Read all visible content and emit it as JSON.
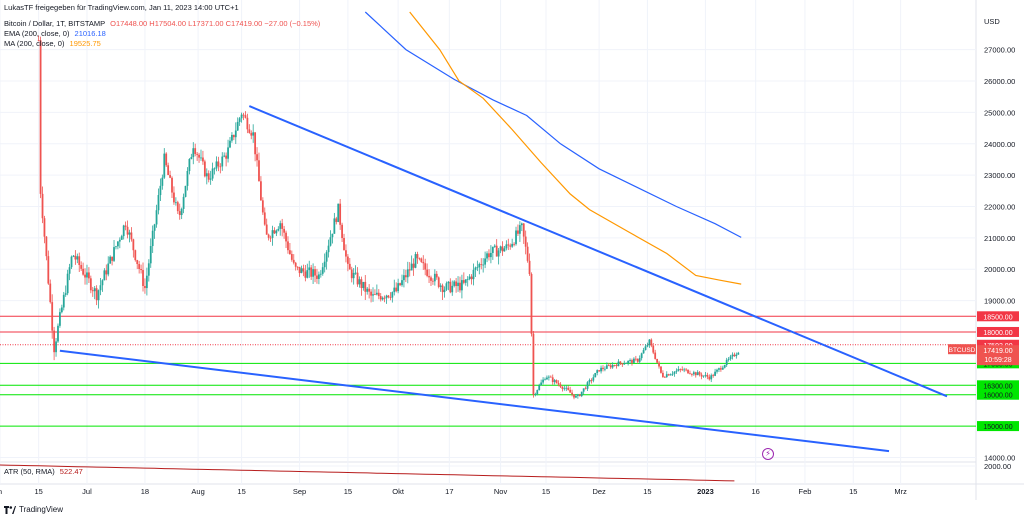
{
  "header": {
    "published": "LukasTF freigegeben für TradingView.com, Jan 11, 2023 14:00 UTC+1",
    "symbol": "Bitcoin / Dollar, 1T, BITSTAMP",
    "ohlc": "O17448.00 H17504.00 L17371.00 C17419.00 −27.00 (−0.15%)",
    "ema_label": "EMA (200, close, 0)",
    "ema_value": "21016.18",
    "ma_label": "MA (200, close, 0)",
    "ma_value": "19525.75",
    "atr_label": "ATR (50, RMA)",
    "atr_value": "522.47"
  },
  "footer": {
    "brand": "TradingView"
  },
  "colors": {
    "up": "#26a69a",
    "down": "#ef5350",
    "ema": "#2962ff",
    "ma": "#ff9800",
    "trend": "#2962ff",
    "resistance": "#f23645",
    "support": "#00e600",
    "atr": "#b71c1c"
  },
  "icons": [
    "tradingview-logo-icon",
    "lightning-event-icon"
  ],
  "chart_data": {
    "type": "candlestick",
    "title": "Bitcoin / Dollar, 1T, BITSTAMP",
    "ylabel": "USD",
    "currency_label": "USD",
    "ylim": [
      13600,
      28200
    ],
    "y_ticks": [
      "27000.00",
      "26000.00",
      "25000.00",
      "24000.00",
      "23000.00",
      "22000.00",
      "21000.00",
      "20000.00",
      "19000.00",
      "14000.00"
    ],
    "x_ticks": [
      "n",
      "15",
      "Jul",
      "18",
      "Aug",
      "15",
      "Sep",
      "15",
      "Okt",
      "17",
      "Nov",
      "15",
      "Dez",
      "15",
      "2023",
      "16",
      "Feb",
      "15",
      "Mrz"
    ],
    "x_tick_days": [
      0,
      40,
      90,
      150,
      205,
      250,
      310,
      360,
      412,
      465,
      518,
      565,
      620,
      670,
      730,
      782,
      833,
      883,
      932
    ],
    "x_range_days": [
      0,
      1010
    ],
    "last_candle_day": 765,
    "key_points": [
      {
        "day": 40,
        "close": 27300
      },
      {
        "day": 42,
        "close": 22500
      },
      {
        "day": 56,
        "close": 17500
      },
      {
        "day": 75,
        "close": 20500
      },
      {
        "day": 100,
        "close": 19200
      },
      {
        "day": 130,
        "close": 21500
      },
      {
        "day": 150,
        "close": 19400
      },
      {
        "day": 170,
        "close": 23500
      },
      {
        "day": 185,
        "close": 21600
      },
      {
        "day": 200,
        "close": 24000
      },
      {
        "day": 215,
        "close": 22900
      },
      {
        "day": 235,
        "close": 23700
      },
      {
        "day": 250,
        "close": 25000
      },
      {
        "day": 262,
        "close": 24300
      },
      {
        "day": 275,
        "close": 21000
      },
      {
        "day": 290,
        "close": 21500
      },
      {
        "day": 305,
        "close": 20000
      },
      {
        "day": 330,
        "close": 19800
      },
      {
        "day": 350,
        "close": 21900
      },
      {
        "day": 360,
        "close": 20000
      },
      {
        "day": 385,
        "close": 19100
      },
      {
        "day": 410,
        "close": 19300
      },
      {
        "day": 430,
        "close": 20300
      },
      {
        "day": 460,
        "close": 19400
      },
      {
        "day": 480,
        "close": 19500
      },
      {
        "day": 505,
        "close": 20500
      },
      {
        "day": 525,
        "close": 20700
      },
      {
        "day": 540,
        "close": 21300
      },
      {
        "day": 548,
        "close": 20000
      },
      {
        "day": 552,
        "close": 16000
      },
      {
        "day": 565,
        "close": 16600
      },
      {
        "day": 580,
        "close": 16300
      },
      {
        "day": 597,
        "close": 15900
      },
      {
        "day": 620,
        "close": 16800
      },
      {
        "day": 640,
        "close": 17000
      },
      {
        "day": 660,
        "close": 17100
      },
      {
        "day": 672,
        "close": 17700
      },
      {
        "day": 685,
        "close": 16600
      },
      {
        "day": 705,
        "close": 16800
      },
      {
        "day": 735,
        "close": 16550
      },
      {
        "day": 765,
        "close": 17419
      }
    ],
    "series": [
      {
        "name": "EMA (200, close, 0)",
        "points": [
          [
            378,
            28200
          ],
          [
            420,
            27000
          ],
          [
            470,
            26050
          ],
          [
            510,
            25400
          ],
          [
            545,
            24900
          ],
          [
            580,
            24000
          ],
          [
            620,
            23200
          ],
          [
            660,
            22600
          ],
          [
            700,
            22000
          ],
          [
            740,
            21450
          ],
          [
            767,
            21016
          ]
        ]
      },
      {
        "name": "MA (200, close, 0)",
        "points": [
          [
            424,
            28200
          ],
          [
            455,
            27000
          ],
          [
            475,
            26000
          ],
          [
            500,
            25450
          ],
          [
            530,
            24450
          ],
          [
            560,
            23400
          ],
          [
            590,
            22400
          ],
          [
            610,
            21900
          ],
          [
            650,
            21200
          ],
          [
            690,
            20500
          ],
          [
            720,
            19800
          ],
          [
            745,
            19650
          ],
          [
            767,
            19525
          ]
        ]
      }
    ],
    "trendlines": [
      {
        "from": [
          258,
          25200
        ],
        "to": [
          980,
          15950
        ]
      },
      {
        "from": [
          62,
          17400
        ],
        "to": [
          920,
          14200
        ]
      }
    ],
    "horizontal_levels": [
      {
        "value": 18500,
        "label": "18500.00",
        "kind": "resistance"
      },
      {
        "value": 18000,
        "label": "18000.00",
        "kind": "resistance"
      },
      {
        "value": 17592,
        "label": "17592.00",
        "kind": "resistance",
        "dotted": true
      },
      {
        "value": 17000,
        "label": "17000.00",
        "kind": "support"
      },
      {
        "value": 16300,
        "label": "16300.00",
        "kind": "support"
      },
      {
        "value": 16000,
        "label": "16000.00",
        "kind": "support"
      },
      {
        "value": 15000,
        "label": "15000.00",
        "kind": "support"
      }
    ],
    "last_price": {
      "symbol": "BTCUSD",
      "value": "17419.00",
      "countdown": "10:59:28"
    },
    "atr_panel": {
      "label": "ATR (50, RMA)",
      "value": "522.47",
      "tick": "2000.00"
    }
  }
}
